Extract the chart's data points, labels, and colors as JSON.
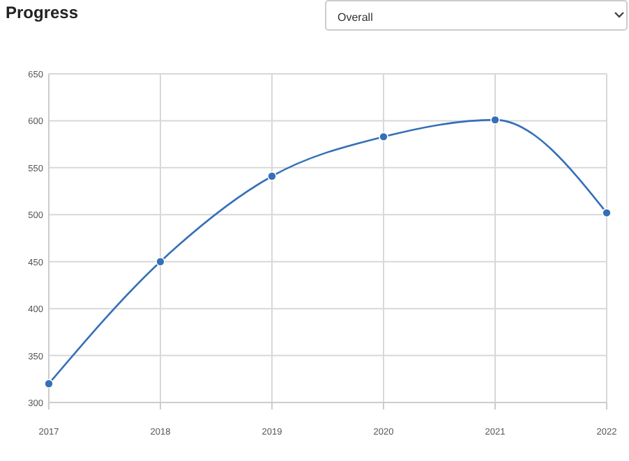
{
  "chart_data": {
    "type": "line",
    "title": "Progress",
    "annotations": [
      "Overall"
    ],
    "x": [
      2017,
      2018,
      2019,
      2020,
      2021,
      2022
    ],
    "series": [
      {
        "color": "#3470b8",
        "values": [
          320,
          450,
          541,
          583,
          601,
          502
        ]
      }
    ],
    "xlim": [
      2017,
      2022
    ],
    "xticks": [
      2017,
      2018,
      2019,
      2020,
      2021,
      2022
    ],
    "ylim": [
      300,
      650
    ],
    "yticks": [
      300,
      350,
      400,
      450,
      500,
      550,
      600,
      650
    ],
    "grid": true,
    "marker": "circle",
    "line_style": "solid"
  }
}
